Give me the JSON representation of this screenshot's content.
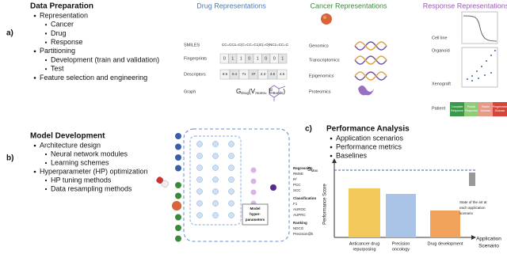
{
  "panel_a": {
    "label": "a)",
    "title": "Data Preparation",
    "items": [
      {
        "text": "Representation",
        "sub": [
          "Cancer",
          "Drug",
          "Response"
        ]
      },
      {
        "text": "Partitioning",
        "sub": [
          "Development (train and validation)",
          "Test"
        ]
      },
      {
        "text": "Feature selection and engineering",
        "sub": []
      }
    ],
    "drug": {
      "title": "Drug Representations",
      "smiles_label": "SMILES",
      "smiles": "CC=CC1=C(C=CC=C1)C(=O)NC1=CC=C",
      "fingerprints_label": "Fingerprints",
      "fingerprints": [
        "0",
        "1",
        "1",
        "0",
        "1",
        "0",
        "0",
        "1"
      ],
      "descriptors_label": "Descriptors",
      "descriptors": [
        "9.5",
        "0.4",
        "71",
        "37",
        "2.3",
        "4.5",
        "4.5"
      ],
      "graph_label": "Graph",
      "graph": [
        "G",
        "Drug",
        "(V",
        "Atoms",
        ", E",
        "Bonds",
        ")"
      ]
    },
    "cancer": {
      "title": "Cancer Representations",
      "omics": [
        "Genomics",
        "Transcriptomics",
        "Epigenomics",
        "Proteomics"
      ]
    },
    "response": {
      "title": "Response Representations",
      "models": [
        "Cell line",
        "Organoid",
        "Xenograft",
        "Patient"
      ],
      "patient_categories": [
        [
          "Complete",
          "Response"
        ],
        [
          "Partial",
          "Response"
        ],
        [
          "Stable",
          "Disease"
        ],
        [
          "Progressive",
          "Disease"
        ]
      ]
    }
  },
  "panel_b": {
    "label": "b)",
    "title": "Model Development",
    "items": [
      {
        "text": "Architecture design",
        "sub": [
          "Neural network modules",
          "Learning schemes"
        ]
      },
      {
        "text": "Hyperparameter (HP) optimization",
        "sub": [
          "HP tuning methods",
          "Data resampling methods"
        ]
      }
    ],
    "hyperparameter_box": [
      "Model",
      "hyper-",
      "parameters"
    ]
  },
  "panel_c": {
    "label": "c)",
    "title": "Performance Analysis",
    "items": [
      {
        "text": "Application scenarios",
        "sub": []
      },
      {
        "text": "Performance metrics",
        "sub": []
      },
      {
        "text": "Baselines",
        "sub": []
      }
    ],
    "metrics": [
      {
        "group": "Regression",
        "names": [
          "RMSE",
          "R²",
          "PCC",
          "SCC"
        ]
      },
      {
        "group": "Classification",
        "names": [
          "F1",
          "AUROC",
          "AUPRC"
        ]
      },
      {
        "group": "Ranking",
        "names": [
          "NDCG",
          "Precision@k"
        ]
      }
    ],
    "y_axis_label": "Performance Score",
    "max_label": [
      "S",
      "Max"
    ],
    "scenarios": [
      [
        "Anticancer drug",
        "repurposing"
      ],
      [
        "Precision",
        "oncology"
      ],
      [
        "Drug development"
      ]
    ],
    "annotation": [
      "State of the art at",
      "each application",
      "scenario"
    ],
    "x_axis_label": [
      "Application",
      "Scenario"
    ]
  }
}
